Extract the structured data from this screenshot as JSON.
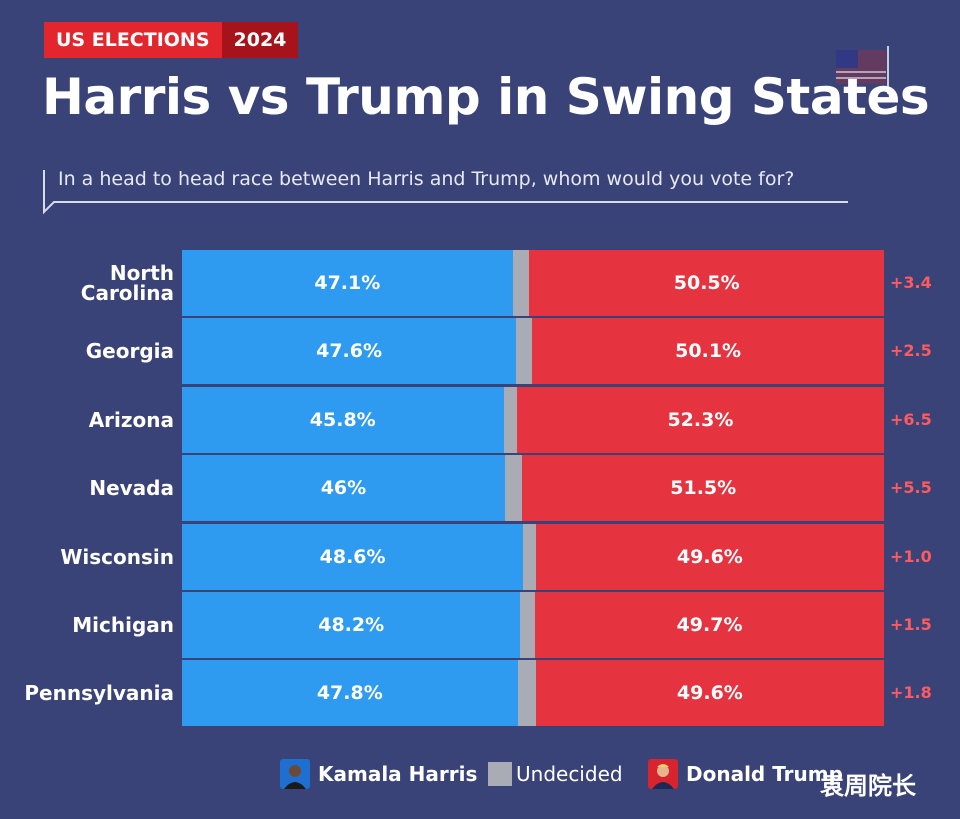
{
  "header": {
    "tag_label": "US ELECTIONS",
    "year_label": "2024",
    "title": "Harris vs Trump in Swing States",
    "subtitle": "In a head to head race between Harris and Trump, whom would you vote for?"
  },
  "colors": {
    "harris": "#2f9bf0",
    "undecided": "#a9abb5",
    "trump": "#e5333f",
    "margin_text": "#ff5a5f",
    "background": "#3a4377"
  },
  "chart_data": {
    "type": "bar",
    "orientation": "horizontal",
    "stacked": true,
    "categories": [
      "North Carolina",
      "Georgia",
      "Arizona",
      "Nevada",
      "Wisconsin",
      "Michigan",
      "Pennsylvania"
    ],
    "category_lines": [
      [
        "North",
        "Carolina"
      ],
      [
        "Georgia"
      ],
      [
        "Arizona"
      ],
      [
        "Nevada"
      ],
      [
        "Wisconsin"
      ],
      [
        "Michigan"
      ],
      [
        "Pennsylvania"
      ]
    ],
    "series": [
      {
        "name": "Kamala Harris",
        "values": [
          47.1,
          47.6,
          45.8,
          46,
          48.6,
          48.2,
          47.8
        ],
        "labels": [
          "47.1%",
          "47.6%",
          "45.8%",
          "46%",
          "48.6%",
          "48.2%",
          "47.8%"
        ]
      },
      {
        "name": "Undecided",
        "values": [
          2.4,
          2.3,
          1.9,
          2.5,
          1.8,
          2.1,
          2.6
        ]
      },
      {
        "name": "Donald Trump",
        "values": [
          50.5,
          50.1,
          52.3,
          51.5,
          49.6,
          49.7,
          49.6
        ],
        "labels": [
          "50.5%",
          "50.1%",
          "52.3%",
          "51.5%",
          "49.6%",
          "49.7%",
          "49.6%"
        ]
      }
    ],
    "margins": [
      "+3.4",
      "+2.5",
      "+6.5",
      "+5.5",
      "+1.0",
      "+1.5",
      "+1.8"
    ],
    "xlim": [
      0,
      100
    ]
  },
  "legend": {
    "harris": "Kamala Harris",
    "undecided": "Undecided",
    "trump": "Donald Trump"
  },
  "watermark": "袁周院长"
}
